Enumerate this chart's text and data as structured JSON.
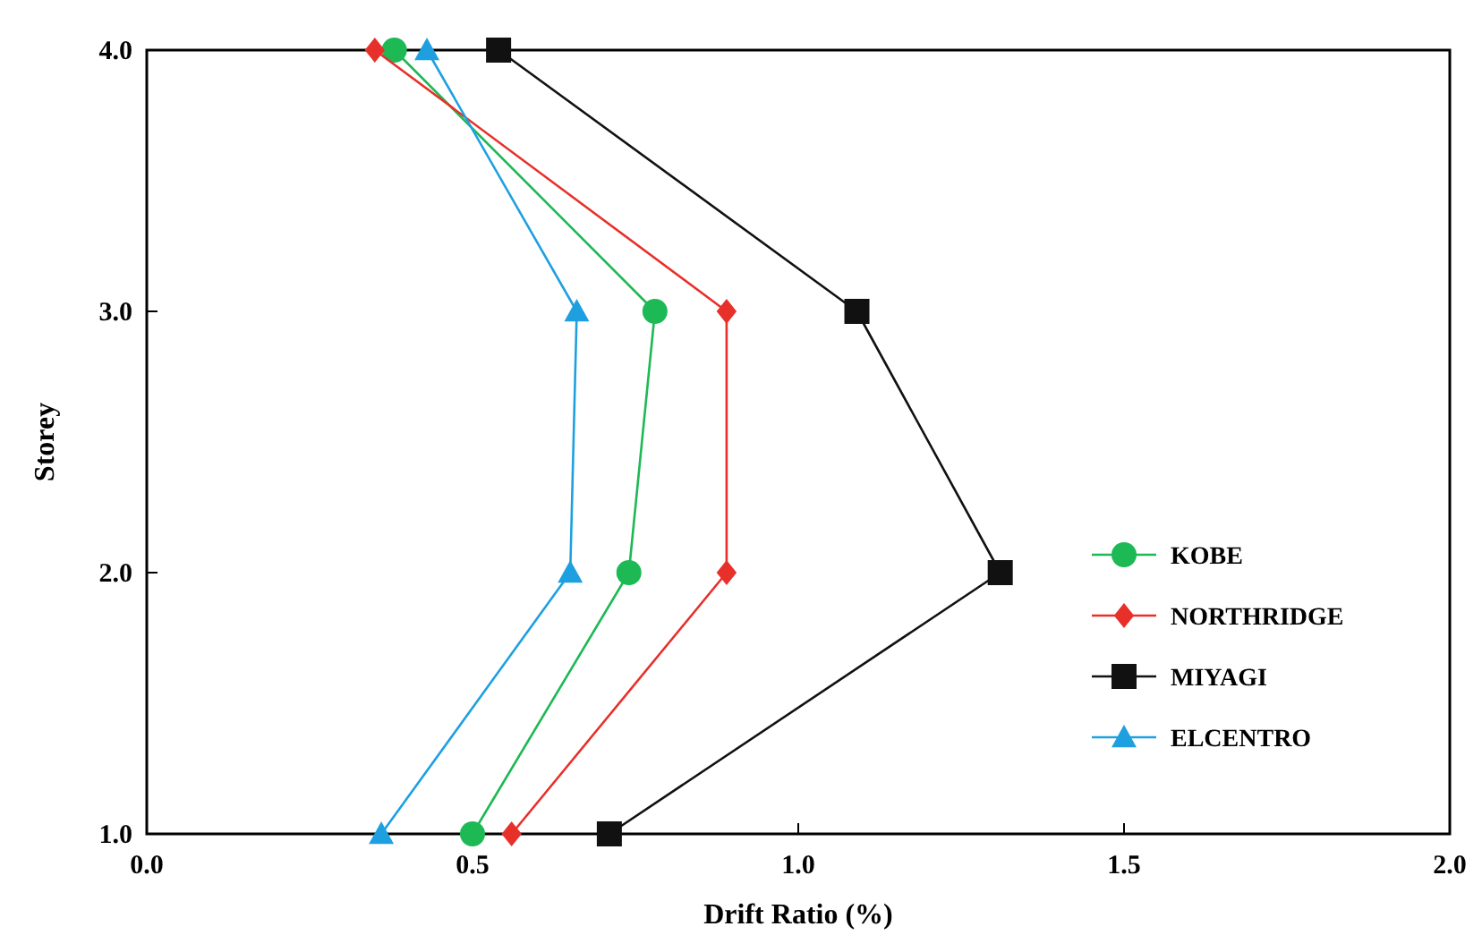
{
  "chart_data": {
    "type": "line",
    "xlabel": "Drift Ratio (%)",
    "ylabel": "Storey",
    "xlim": [
      0,
      2
    ],
    "xticks": [
      {
        "value": 0,
        "label": "0.0"
      },
      {
        "value": 0.5,
        "label": "0.5"
      },
      {
        "value": 1,
        "label": "1.0"
      },
      {
        "value": 1.5,
        "label": "1.5"
      },
      {
        "value": 2,
        "label": "2.0"
      }
    ],
    "ylim": [
      1,
      4
    ],
    "yticks": [
      {
        "value": 1,
        "label": "1.0"
      },
      {
        "value": 2,
        "label": "2.0"
      },
      {
        "value": 3,
        "label": "3.0"
      },
      {
        "value": 4,
        "label": "4.0"
      }
    ],
    "grid": false,
    "legend": "bottom right",
    "line_style": "solid",
    "series": [
      {
        "name": "KOBE",
        "color": "#1db954",
        "marker": "circle",
        "x": [
          0.38,
          0.78,
          0.74,
          0.5
        ],
        "values": [
          4,
          3,
          2,
          1
        ]
      },
      {
        "name": "NORTHRIDGE",
        "color": "#e8302a",
        "marker": "diamond",
        "x": [
          0.35,
          0.89,
          0.89,
          0.56
        ],
        "values": [
          4,
          3,
          2,
          1
        ]
      },
      {
        "name": "MIYAGI",
        "color": "#111111",
        "marker": "square",
        "x": [
          0.54,
          1.09,
          1.31,
          0.71
        ],
        "values": [
          4,
          3,
          2,
          1
        ]
      },
      {
        "name": "ELCENTRO",
        "color": "#1ea0e0",
        "marker": "triangle",
        "x": [
          0.43,
          0.66,
          0.65,
          0.36
        ],
        "values": [
          4,
          3,
          2,
          1
        ]
      }
    ]
  }
}
